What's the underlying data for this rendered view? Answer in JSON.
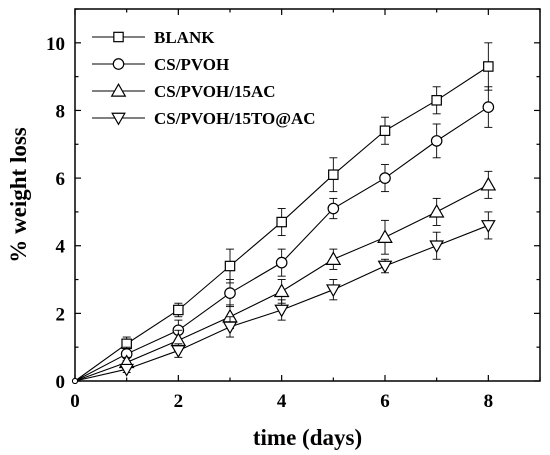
{
  "chart_data": {
    "type": "line",
    "xlabel": "time (days)",
    "ylabel": "% weight loss",
    "xlim": [
      0,
      9
    ],
    "ylim": [
      0,
      11
    ],
    "x_ticks": [
      "0",
      "2",
      "4",
      "6",
      "8"
    ],
    "y_ticks": [
      "0",
      "2",
      "4",
      "6",
      "8",
      "10"
    ],
    "grid": false,
    "legend_position": "top-left",
    "x": [
      0,
      1,
      2,
      3,
      4,
      5,
      6,
      7,
      8
    ],
    "series": [
      {
        "name": "BLANK",
        "marker": "square",
        "values": [
          0,
          1.1,
          2.1,
          3.4,
          4.7,
          6.1,
          7.4,
          8.3,
          9.3
        ],
        "errors": [
          0,
          0.2,
          0.2,
          0.5,
          0.4,
          0.5,
          0.4,
          0.4,
          0.7
        ]
      },
      {
        "name": "CS/PVOH",
        "marker": "circle",
        "values": [
          0,
          0.8,
          1.5,
          2.6,
          3.5,
          5.1,
          6.0,
          7.1,
          8.1
        ],
        "errors": [
          0,
          0.2,
          0.3,
          0.4,
          0.4,
          0.3,
          0.4,
          0.5,
          0.6
        ]
      },
      {
        "name": "CS/PVOH/15AC",
        "marker": "triangle-up",
        "values": [
          0,
          0.55,
          1.2,
          1.9,
          2.65,
          3.6,
          4.25,
          5.0,
          5.8
        ],
        "errors": [
          0,
          0.15,
          0.3,
          0.35,
          0.35,
          0.3,
          0.5,
          0.4,
          0.4
        ]
      },
      {
        "name": "CS/PVOH/15TO@AC",
        "marker": "triangle-down",
        "values": [
          0,
          0.35,
          0.9,
          1.6,
          2.1,
          2.7,
          3.4,
          4.0,
          4.6
        ],
        "errors": [
          0,
          0.1,
          0.2,
          0.3,
          0.3,
          0.3,
          0.2,
          0.4,
          0.4
        ]
      }
    ]
  }
}
